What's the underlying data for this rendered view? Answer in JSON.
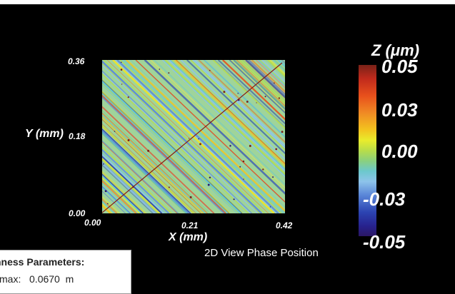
{
  "plot": {
    "y_ticks": [
      "0.36",
      "0.18",
      "0.00"
    ],
    "x_ticks": [
      "0.00",
      "0.21",
      "0.42"
    ],
    "x_axis_label": "X (mm)",
    "y_axis_label": "Y (mm)",
    "view_caption": "2D View Phase Position"
  },
  "colorbar": {
    "title": "Z (μm)",
    "ticks": [
      "0.05",
      "0.03",
      "0.00",
      "-0.03",
      "-0.05"
    ],
    "colors": [
      "#7a2218",
      "#c02a1c",
      "#e8501c",
      "#f08a24",
      "#f3c41f",
      "#e9ec2c",
      "#b8dd4a",
      "#8ad07e",
      "#6cc8cc",
      "#8ec4ea",
      "#5a86d8",
      "#2c44b2",
      "#27228e",
      "#2b1764"
    ]
  },
  "params": {
    "title": "hness Parameters:",
    "row_label": "max:",
    "row_value": "0.0670",
    "row_unit": "m"
  }
}
